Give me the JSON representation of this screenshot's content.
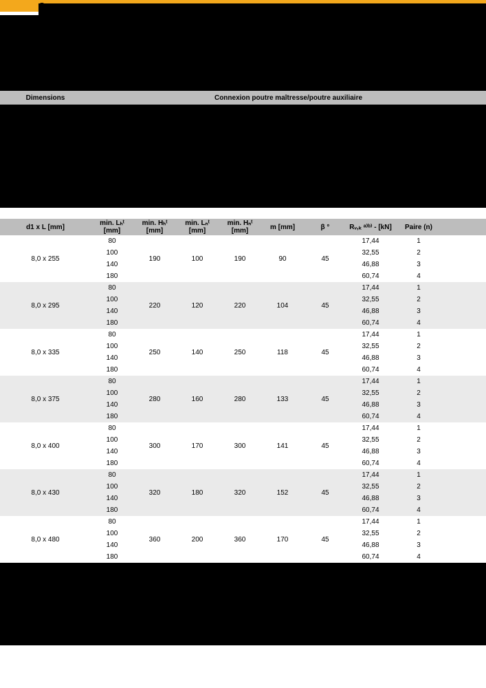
{
  "header": {
    "tab_mark": "C",
    "span_dimensions": "Dimensions",
    "span_connection": "Connexion poutre maîtresse/poutre auxiliaire",
    "mid_label_left": "",
    "mid_label_right": ""
  },
  "columns": {
    "c0": "d1 x L [mm]",
    "c1": "min. Lₕᵗ [mm]",
    "c2": "min. Hₕᵗ [mm]",
    "c3": "min. Lₙᵗ [mm]",
    "c4": "min. Hₙᵗ [mm]",
    "c5": "m [mm]",
    "c6": "β  °",
    "c7": "Rᵥ,ₖ ᵃ⁾ᵇ⁾ - [kN]",
    "c8": "Paire (n)"
  },
  "groups": [
    {
      "dim": "8,0 x 255",
      "bg": "w",
      "lpt": [
        "80",
        "100",
        "140",
        "180"
      ],
      "h_pt": "190",
      "l_nt": "100",
      "h_nt": "190",
      "m": "90",
      "beta": "45",
      "rvk": [
        "17,44",
        "32,55",
        "46,88",
        "60,74"
      ],
      "paire": [
        "1",
        "2",
        "3",
        "4"
      ]
    },
    {
      "dim": "8,0 x 295",
      "bg": "g",
      "lpt": [
        "80",
        "100",
        "140",
        "180"
      ],
      "h_pt": "220",
      "l_nt": "120",
      "h_nt": "220",
      "m": "104",
      "beta": "45",
      "rvk": [
        "17,44",
        "32,55",
        "46,88",
        "60,74"
      ],
      "paire": [
        "1",
        "2",
        "3",
        "4"
      ]
    },
    {
      "dim": "8,0 x 335",
      "bg": "w",
      "lpt": [
        "80",
        "100",
        "140",
        "180"
      ],
      "h_pt": "250",
      "l_nt": "140",
      "h_nt": "250",
      "m": "118",
      "beta": "45",
      "rvk": [
        "17,44",
        "32,55",
        "46,88",
        "60,74"
      ],
      "paire": [
        "1",
        "2",
        "3",
        "4"
      ]
    },
    {
      "dim": "8,0 x 375",
      "bg": "g",
      "lpt": [
        "80",
        "100",
        "140",
        "180"
      ],
      "h_pt": "280",
      "l_nt": "160",
      "h_nt": "280",
      "m": "133",
      "beta": "45",
      "rvk": [
        "17,44",
        "32,55",
        "46,88",
        "60,74"
      ],
      "paire": [
        "1",
        "2",
        "3",
        "4"
      ]
    },
    {
      "dim": "8,0 x 400",
      "bg": "w",
      "lpt": [
        "80",
        "100",
        "140",
        "180"
      ],
      "h_pt": "300",
      "l_nt": "170",
      "h_nt": "300",
      "m": "141",
      "beta": "45",
      "rvk": [
        "17,44",
        "32,55",
        "46,88",
        "60,74"
      ],
      "paire": [
        "1",
        "2",
        "3",
        "4"
      ]
    },
    {
      "dim": "8,0 x 430",
      "bg": "g",
      "lpt": [
        "80",
        "100",
        "140",
        "180"
      ],
      "h_pt": "320",
      "l_nt": "180",
      "h_nt": "320",
      "m": "152",
      "beta": "45",
      "rvk": [
        "17,44",
        "32,55",
        "46,88",
        "60,74"
      ],
      "paire": [
        "1",
        "2",
        "3",
        "4"
      ]
    },
    {
      "dim": "8,0 x 480",
      "bg": "w",
      "lpt": [
        "80",
        "100",
        "140",
        "180"
      ],
      "h_pt": "360",
      "l_nt": "200",
      "h_nt": "360",
      "m": "170",
      "beta": "45",
      "rvk": [
        "17,44",
        "32,55",
        "46,88",
        "60,74"
      ],
      "paire": [
        "1",
        "2",
        "3",
        "4"
      ]
    }
  ],
  "style": {
    "accent": "#f3a81c",
    "grey_header": "#bdbdbd",
    "row_alt": "#eaeaea",
    "black": "#000000"
  }
}
